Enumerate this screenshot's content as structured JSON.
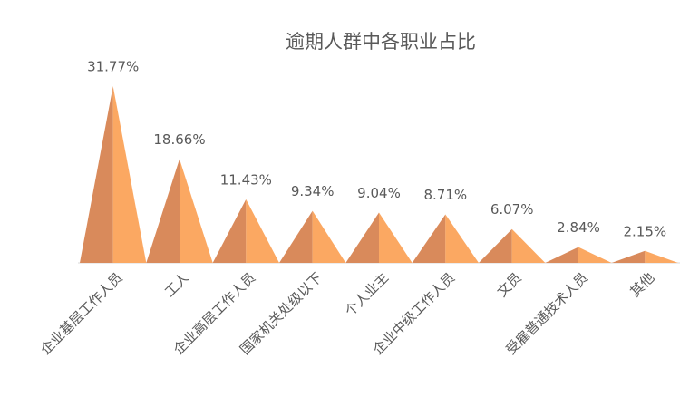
{
  "chart_data": {
    "type": "triangle",
    "title": "逾期人群中各职业占比",
    "categories": [
      "企业基层工作人员",
      "工人",
      "企业高层工作人员",
      "国家机关处级以下",
      "个人业主",
      "企业中级工作人员",
      "文员",
      "受雇普通技术人员",
      "其他"
    ],
    "values": [
      31.77,
      18.66,
      11.43,
      9.34,
      9.04,
      8.71,
      6.07,
      2.84,
      2.15
    ],
    "value_labels": [
      "31.77%",
      "18.66%",
      "11.43%",
      "9.34%",
      "9.04%",
      "8.71%",
      "6.07%",
      "2.84%",
      "2.15%"
    ],
    "color": "#fba862",
    "shade_color": "#d98a5b"
  }
}
